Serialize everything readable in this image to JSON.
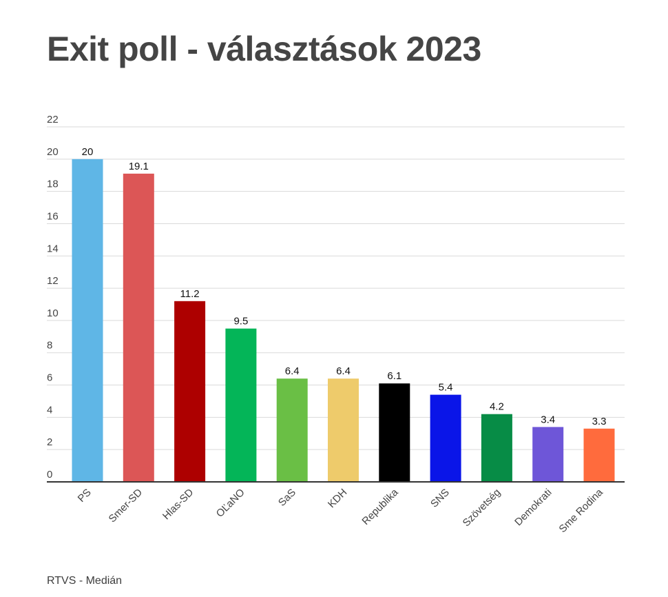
{
  "title": "Exit poll - választások 2023",
  "source": "RTVS - Medián",
  "chart_data": {
    "type": "bar",
    "title": "Exit poll - választások 2023",
    "xlabel": "",
    "ylabel": "",
    "ylim": [
      0,
      22
    ],
    "yticks": [
      0,
      2,
      4,
      6,
      8,
      10,
      12,
      14,
      16,
      18,
      20,
      22
    ],
    "grid": true,
    "categories": [
      "PS",
      "Smer-SD",
      "Hlas-SD",
      "OĽaNO",
      "SaS",
      "KDH",
      "Republika",
      "SNS",
      "Szövetség",
      "Demokrati",
      "Sme Rodina"
    ],
    "values": [
      20,
      19.1,
      11.2,
      9.5,
      6.4,
      6.4,
      6.1,
      5.4,
      4.2,
      3.4,
      3.3
    ],
    "value_labels": [
      "20",
      "19.1",
      "11.2",
      "9.5",
      "6.4",
      "6.4",
      "6.1",
      "5.4",
      "4.2",
      "3.4",
      "3.3"
    ],
    "colors": [
      "#5fb6e6",
      "#dc5656",
      "#ad0000",
      "#04b558",
      "#6abf45",
      "#eecb6b",
      "#000000",
      "#0a15e8",
      "#078c46",
      "#6e56d8",
      "#ff6b3d"
    ]
  }
}
